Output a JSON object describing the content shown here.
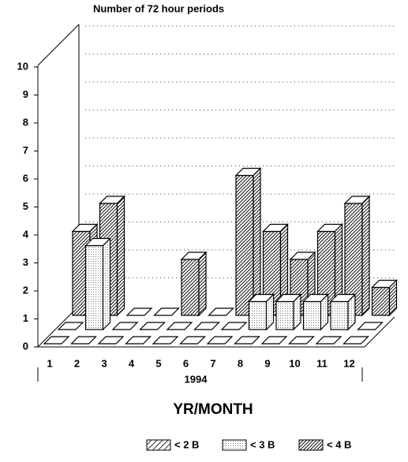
{
  "chart_data": {
    "type": "bar3d",
    "title": "Number of 72 hour periods",
    "group_label": "1994",
    "x_label": "YR/MONTH",
    "categories": [
      "1",
      "2",
      "3",
      "4",
      "5",
      "6",
      "7",
      "8",
      "9",
      "10",
      "11",
      "12"
    ],
    "ylim": [
      0,
      10
    ],
    "yticks": [
      0,
      1,
      2,
      3,
      4,
      5,
      6,
      7,
      8,
      9,
      10
    ],
    "grid": true,
    "legend": "bottom",
    "series": [
      {
        "name": "< 2 B",
        "color": "#000000",
        "pattern": "hatch",
        "values": [
          0,
          0,
          0,
          0,
          0,
          0,
          0,
          0,
          0,
          0,
          0,
          0
        ]
      },
      {
        "name": "< 3 B",
        "color": "#000000",
        "pattern": "dots",
        "values": [
          0,
          3,
          0,
          0,
          0,
          0,
          0,
          1,
          1,
          1,
          1,
          0
        ]
      },
      {
        "name": "< 4 B",
        "color": "#000000",
        "pattern": "dense",
        "values": [
          3,
          4,
          0,
          0,
          2,
          0,
          5,
          3,
          2,
          3,
          4,
          1
        ]
      }
    ]
  }
}
